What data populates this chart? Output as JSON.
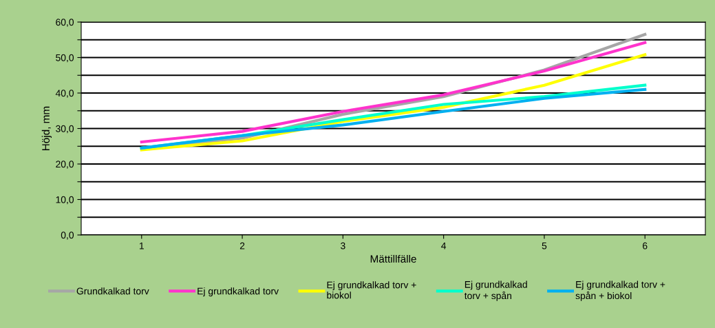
{
  "chart_data": {
    "type": "line",
    "xlabel": "Mättillfälle",
    "ylabel": "Höjd, mm",
    "categories": [
      "1",
      "2",
      "3",
      "4",
      "5",
      "6"
    ],
    "series": [
      {
        "name": "Grundkalkad torv",
        "color": "#a6a6a6",
        "values": [
          24.5,
          27.3,
          34.0,
          39.0,
          46.5,
          56.5
        ]
      },
      {
        "name": "Ej grundkalkad torv",
        "color": "#ff33cc",
        "values": [
          26.2,
          29.2,
          34.8,
          39.5,
          46.2,
          54.2
        ]
      },
      {
        "name": "Ej grundkalkad torv +\nbiokol",
        "color": "#ffff00",
        "values": [
          24.0,
          26.5,
          32.0,
          36.0,
          42.2,
          50.8
        ]
      },
      {
        "name": "Ej grundkalkad\ntorv + spån",
        "color": "#00ffcc",
        "values": [
          24.5,
          28.0,
          32.5,
          36.8,
          39.0,
          42.2
        ]
      },
      {
        "name": "Ej grundkalkad torv +\nspån + biokol",
        "color": "#00b0f0",
        "values": [
          24.5,
          28.0,
          31.0,
          34.8,
          38.5,
          41.0
        ]
      }
    ],
    "ylim": [
      0,
      60
    ],
    "yticks": [
      {
        "value": 0,
        "label": "0,0"
      },
      {
        "value": 5,
        "label": null
      },
      {
        "value": 10,
        "label": "10,0"
      },
      {
        "value": 15,
        "label": null
      },
      {
        "value": 20,
        "label": "20,0"
      },
      {
        "value": 25,
        "label": null
      },
      {
        "value": 30,
        "label": "30,0"
      },
      {
        "value": 35,
        "label": null
      },
      {
        "value": 40,
        "label": "40,0"
      },
      {
        "value": 45,
        "label": null
      },
      {
        "value": 50,
        "label": "50,0"
      },
      {
        "value": 55,
        "label": null
      },
      {
        "value": 60,
        "label": "60,0"
      }
    ],
    "grid": "y",
    "legend": "bottom",
    "marker": "none",
    "line_style": "solid"
  }
}
